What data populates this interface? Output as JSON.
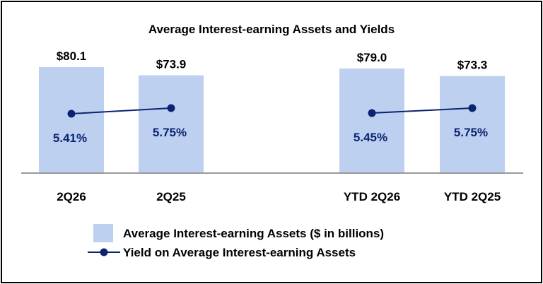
{
  "chart_data": {
    "type": "bar",
    "title": "Average Interest-earning Assets and Yields",
    "categories": [
      "2Q26",
      "2Q25",
      "YTD 2Q26",
      "YTD 2Q25"
    ],
    "series": [
      {
        "name": "Average Interest-earning Assets ($ in billions)",
        "type": "bar",
        "values": [
          80.1,
          73.9,
          79.0,
          73.3
        ],
        "labels": [
          "$80.1",
          "$73.9",
          "$79.0",
          "$73.3"
        ],
        "color": "#bdd0f0"
      },
      {
        "name": "Yield on Average Interest-earning Assets",
        "type": "line",
        "values": [
          5.41,
          5.75,
          5.45,
          5.75
        ],
        "labels": [
          "5.41%",
          "5.75%",
          "5.45%",
          "5.75%"
        ],
        "color": "#0b2470",
        "segments": [
          [
            0,
            1
          ],
          [
            2,
            3
          ]
        ]
      }
    ],
    "xlabel": "",
    "ylabel": "",
    "legend_position": "bottom",
    "grid": false
  }
}
